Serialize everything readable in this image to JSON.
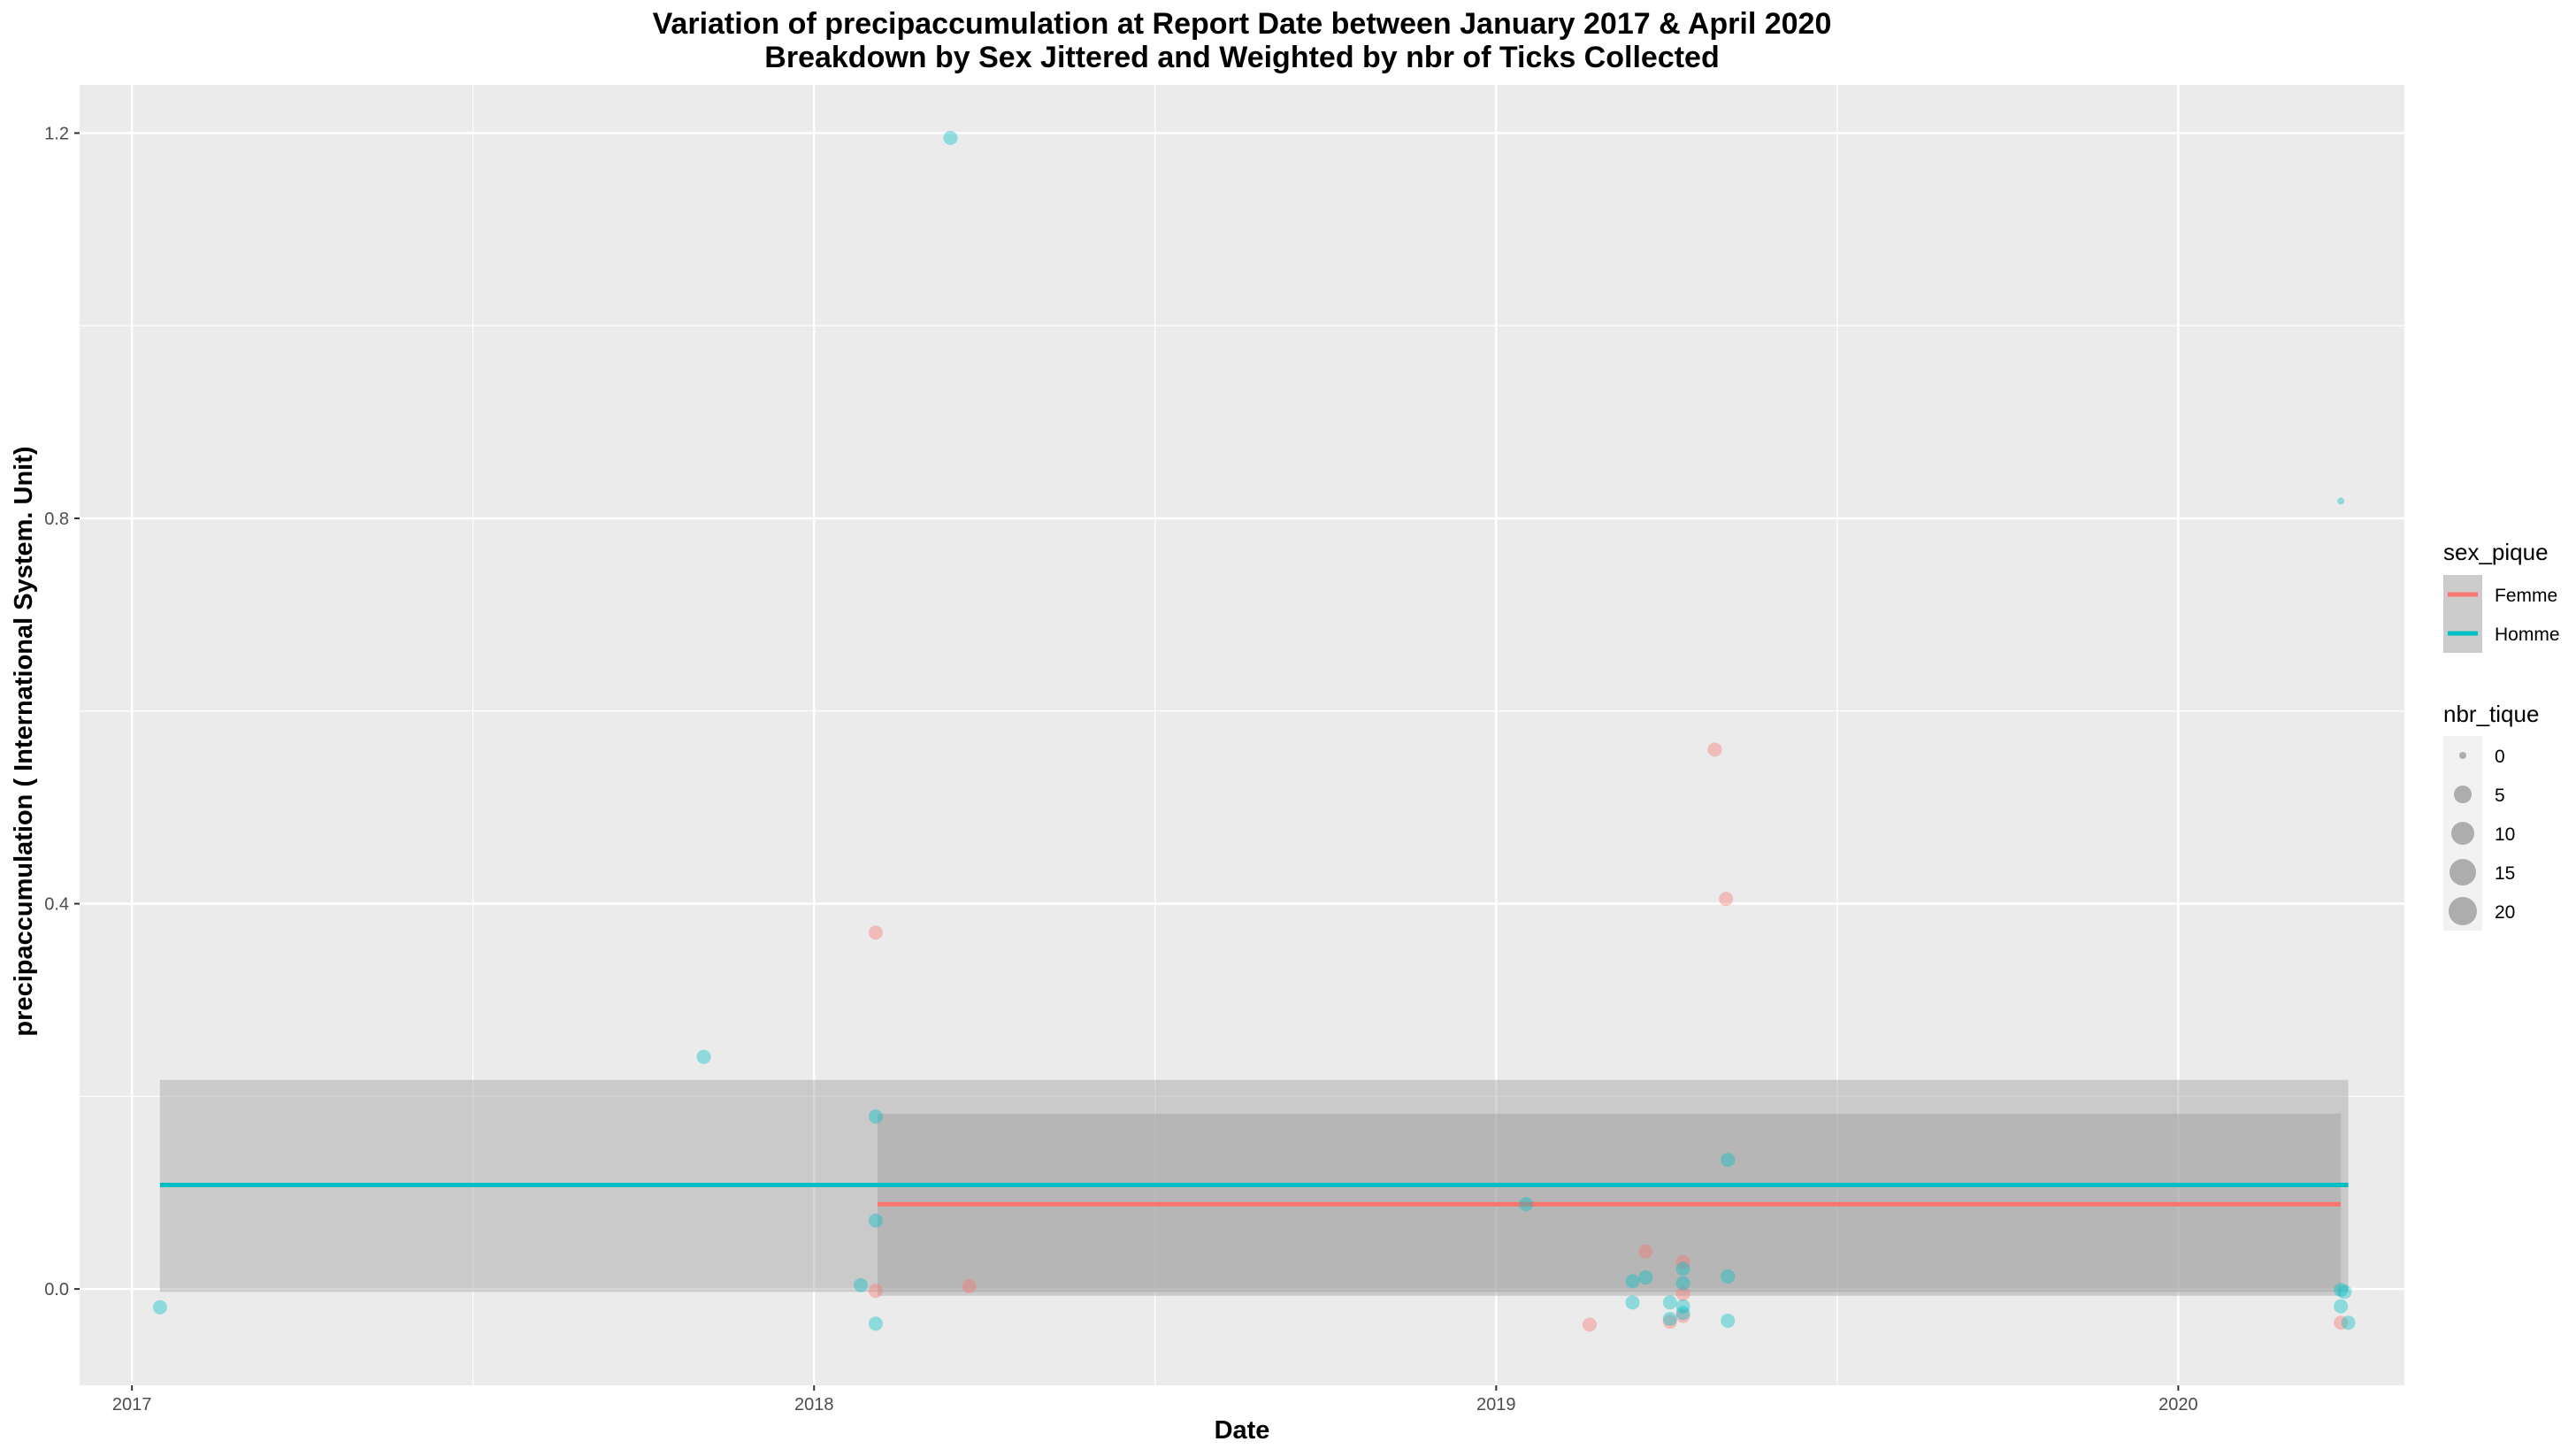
{
  "chart_data": {
    "type": "scatter",
    "title": "Variation of  precipaccumulation  at Report Date between January 2017 & April 2020",
    "subtitle": "Breakdown by Sex Jittered and Weighted by nbr of Ticks Collected",
    "xlabel": "Date",
    "ylabel": "precipaccumulation ( International System. Unit)",
    "xlim": [
      "2016-12-04",
      "2020-05-01"
    ],
    "ylim": [
      -0.1,
      1.25
    ],
    "x_ticks": [
      "2017",
      "2018",
      "2019",
      "2020"
    ],
    "x_tick_dates": [
      "2017-01-01",
      "2018-01-01",
      "2019-01-01",
      "2020-01-01"
    ],
    "y_ticks": [
      0.0,
      0.4,
      0.8,
      1.2
    ],
    "y_tick_labels": [
      "0.0",
      "0.4",
      "0.8",
      "1.2"
    ],
    "grid": true,
    "series": [
      {
        "name": "Femme",
        "color": "#F8766D",
        "points": [
          {
            "x": "2018-02-03",
            "y": 0.37,
            "nbr_tique": 1
          },
          {
            "x": "2018-02-03",
            "y": -0.002,
            "nbr_tique": 1
          },
          {
            "x": "2018-03-25",
            "y": 0.003,
            "nbr_tique": 1
          },
          {
            "x": "2019-02-20",
            "y": -0.037,
            "nbr_tique": 1
          },
          {
            "x": "2019-03-22",
            "y": 0.039,
            "nbr_tique": 1
          },
          {
            "x": "2019-04-04",
            "y": -0.034,
            "nbr_tique": 1
          },
          {
            "x": "2019-04-11",
            "y": 0.028,
            "nbr_tique": 1
          },
          {
            "x": "2019-04-11",
            "y": -0.028,
            "nbr_tique": 1
          },
          {
            "x": "2019-04-11",
            "y": -0.005,
            "nbr_tique": 1
          },
          {
            "x": "2019-04-28",
            "y": 0.56,
            "nbr_tique": 1
          },
          {
            "x": "2019-05-04",
            "y": 0.405,
            "nbr_tique": 1
          },
          {
            "x": "2020-03-28",
            "y": -0.035,
            "nbr_tique": 1
          }
        ],
        "smooth": {
          "x_start": "2018-02-04",
          "x_end": "2020-03-28",
          "y": 0.088,
          "ci_low": -0.007,
          "ci_high": 0.182
        }
      },
      {
        "name": "Homme",
        "color": "#00BFC4",
        "points": [
          {
            "x": "2017-01-16",
            "y": -0.019,
            "nbr_tique": 1
          },
          {
            "x": "2017-11-03",
            "y": 0.241,
            "nbr_tique": 1
          },
          {
            "x": "2018-01-26",
            "y": 0.004,
            "nbr_tique": 1
          },
          {
            "x": "2018-02-03",
            "y": 0.179,
            "nbr_tique": 1
          },
          {
            "x": "2018-02-03",
            "y": 0.071,
            "nbr_tique": 1
          },
          {
            "x": "2018-02-03",
            "y": -0.036,
            "nbr_tique": 1
          },
          {
            "x": "2018-03-15",
            "y": 1.195,
            "nbr_tique": 1
          },
          {
            "x": "2019-01-17",
            "y": 0.088,
            "nbr_tique": 1
          },
          {
            "x": "2019-03-15",
            "y": 0.008,
            "nbr_tique": 1
          },
          {
            "x": "2019-03-15",
            "y": -0.014,
            "nbr_tique": 1
          },
          {
            "x": "2019-03-22",
            "y": 0.012,
            "nbr_tique": 1
          },
          {
            "x": "2019-04-04",
            "y": -0.014,
            "nbr_tique": 1
          },
          {
            "x": "2019-04-04",
            "y": -0.031,
            "nbr_tique": 1
          },
          {
            "x": "2019-04-11",
            "y": 0.021,
            "nbr_tique": 1
          },
          {
            "x": "2019-04-11",
            "y": 0.006,
            "nbr_tique": 1
          },
          {
            "x": "2019-04-11",
            "y": -0.018,
            "nbr_tique": 1
          },
          {
            "x": "2019-04-11",
            "y": -0.025,
            "nbr_tique": 1
          },
          {
            "x": "2019-05-05",
            "y": 0.134,
            "nbr_tique": 1
          },
          {
            "x": "2019-05-05",
            "y": 0.013,
            "nbr_tique": 1
          },
          {
            "x": "2019-05-05",
            "y": -0.033,
            "nbr_tique": 1
          },
          {
            "x": "2020-03-28",
            "y": 0.818,
            "nbr_tique": 0
          },
          {
            "x": "2020-03-28",
            "y": -0.001,
            "nbr_tique": 1
          },
          {
            "x": "2020-03-28",
            "y": -0.018,
            "nbr_tique": 1
          },
          {
            "x": "2020-04-01",
            "y": -0.035,
            "nbr_tique": 1
          },
          {
            "x": "2020-03-30",
            "y": -0.003,
            "nbr_tique": 1
          }
        ],
        "smooth": {
          "x_start": "2017-01-16",
          "x_end": "2020-04-01",
          "y": 0.108,
          "ci_low": -0.003,
          "ci_high": 0.217
        }
      }
    ],
    "legend": {
      "placement": "right",
      "color_title": "sex_pique",
      "color_entries": [
        "Femme",
        "Homme"
      ],
      "size_title": "nbr_tique",
      "size_entries": [
        "0",
        "5",
        "10",
        "15",
        "20"
      ]
    }
  },
  "colors": {
    "panel_background": "#EBEBEB",
    "grid_major": "#FFFFFF",
    "ribbon": "#999999",
    "femme": "#F8766D",
    "homme": "#00BFC4",
    "legend_key_background": "#CCCCCC",
    "legend_size_point": "#7F7F7F"
  }
}
